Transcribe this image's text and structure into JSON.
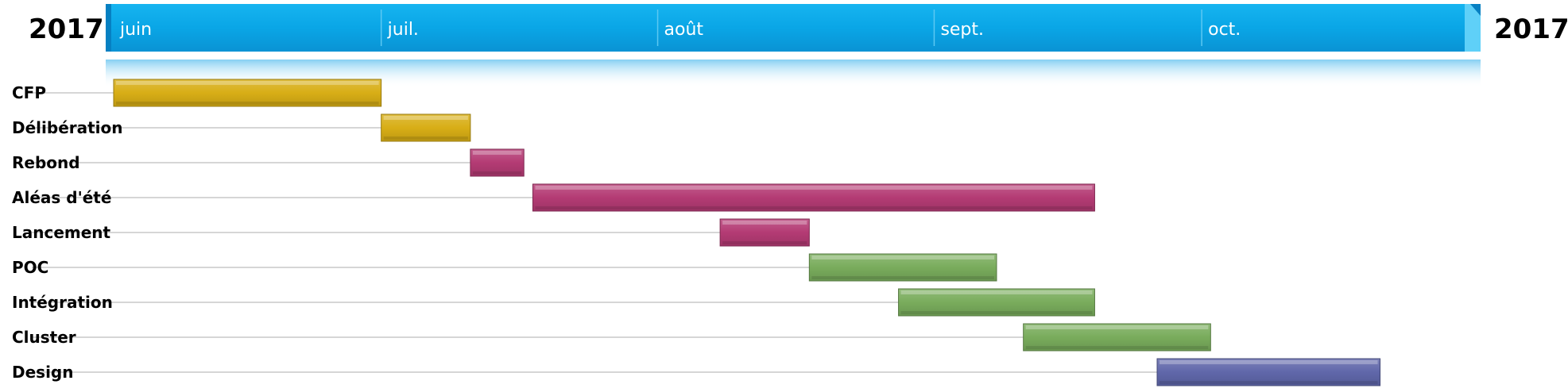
{
  "colors": {
    "timeline_band": "#0aa6e6",
    "timeline_dark": "#0680c2",
    "year_text": "#1a9ed8",
    "month_text": "#ffffff",
    "task_text": "#000000",
    "leader_line": "#c8c8c8",
    "yellow": "#d8ae16",
    "pink": "#b43b74",
    "green": "#79ac5c",
    "purple": "#6067aa"
  },
  "chart_data": {
    "type": "gantt",
    "title": "",
    "year_left": "2017",
    "year_right": "2017",
    "x_range": [
      "2017-06-01",
      "2017-10-31"
    ],
    "months": [
      {
        "label": "juin",
        "start": "2017-06-01"
      },
      {
        "label": "juil.",
        "start": "2017-07-01"
      },
      {
        "label": "août",
        "start": "2017-08-01"
      },
      {
        "label": "sept.",
        "start": "2017-09-01"
      },
      {
        "label": "oct.",
        "start": "2017-10-01"
      }
    ],
    "tasks": [
      {
        "label": "CFP",
        "start": "2017-06-01",
        "end": "2017-07-01",
        "color": "yellow"
      },
      {
        "label": "Délibération",
        "start": "2017-07-01",
        "end": "2017-07-11",
        "color": "yellow"
      },
      {
        "label": "Rebond",
        "start": "2017-07-11",
        "end": "2017-07-17",
        "color": "pink"
      },
      {
        "label": "Aléas d'été",
        "start": "2017-07-18",
        "end": "2017-09-19",
        "color": "pink"
      },
      {
        "label": "Lancement",
        "start": "2017-08-08",
        "end": "2017-08-18",
        "color": "pink"
      },
      {
        "label": "POC",
        "start": "2017-08-18",
        "end": "2017-09-08",
        "color": "green"
      },
      {
        "label": "Intégration",
        "start": "2017-08-28",
        "end": "2017-09-19",
        "color": "green"
      },
      {
        "label": "Cluster",
        "start": "2017-09-11",
        "end": "2017-10-02",
        "color": "green"
      },
      {
        "label": "Design",
        "start": "2017-09-26",
        "end": "2017-10-21",
        "color": "purple"
      }
    ]
  }
}
